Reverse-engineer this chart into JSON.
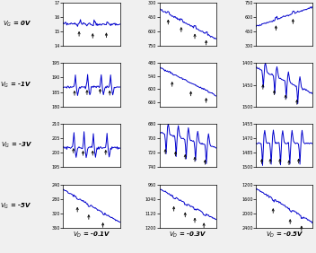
{
  "row_labels": [
    "$V_G$ = 0V",
    "$V_G$ = -1V",
    "$V_G$ = -3V",
    "$V_G$ = -5V"
  ],
  "col_labels": [
    "$V_D$ = -0.1V",
    "$V_D$ = -0.3V",
    "$V_D$ = -0.5V"
  ],
  "ylims": [
    [
      [
        14,
        17
      ],
      [
        300,
        750
      ],
      [
        300,
        750
      ]
    ],
    [
      [
        180,
        195
      ],
      [
        480,
        680
      ],
      [
        1400,
        1500
      ]
    ],
    [
      [
        195,
        210
      ],
      [
        680,
        740
      ],
      [
        1455,
        1500
      ]
    ],
    [
      [
        240,
        360
      ],
      [
        960,
        1200
      ],
      [
        1200,
        2400
      ]
    ]
  ],
  "yticks": [
    [
      [
        14,
        15,
        16,
        17
      ],
      [
        300,
        450,
        600,
        750
      ],
      [
        300,
        450,
        600,
        750
      ]
    ],
    [
      [
        180,
        185,
        190,
        195
      ],
      [
        480,
        540,
        600,
        660
      ],
      [
        1400,
        1450,
        1500
      ]
    ],
    [
      [
        195,
        200,
        205,
        210
      ],
      [
        680,
        700,
        720,
        740
      ],
      [
        1455,
        1470,
        1485,
        1500
      ]
    ],
    [
      [
        240,
        280,
        320,
        360
      ],
      [
        960,
        1040,
        1120,
        1200
      ],
      [
        1200,
        1600,
        2000,
        2400
      ]
    ]
  ],
  "inverted": [
    [
      false,
      true,
      false
    ],
    [
      false,
      true,
      true
    ],
    [
      false,
      true,
      true
    ],
    [
      true,
      true,
      true
    ]
  ],
  "line_color": "#0000cc",
  "arrow_color": "#000000",
  "bg_color": "#f0f0f0"
}
